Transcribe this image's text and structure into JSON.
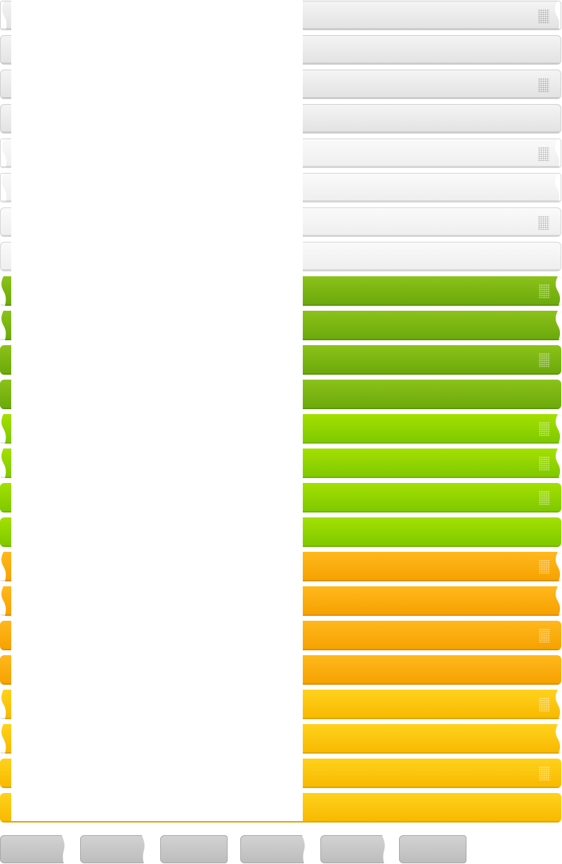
{
  "title": "",
  "colors": {
    "gray_dark": "#e2e2e2",
    "gray_light": "#eeeeee",
    "green_dark": "#6aa80b",
    "green_light": "#7dc800",
    "orange_dark": "#f6a100",
    "orange_light": "#f8b800",
    "tab_gray": "#bdbdbd"
  },
  "bars": [
    {
      "name": "bar-gray-dark-wavy-grip",
      "style": "gray1",
      "grip": true
    },
    {
      "name": "bar-gray-dark-plain",
      "style": "gray1",
      "grip": false
    },
    {
      "name": "bar-gray-dark-rounded-grip",
      "style": "gray1",
      "grip": true
    },
    {
      "name": "bar-gray-dark-rounded-plain",
      "style": "gray1",
      "grip": false
    },
    {
      "name": "bar-gray-light-wavy-grip",
      "style": "gray2",
      "grip": true
    },
    {
      "name": "bar-gray-light-wavy-plain",
      "style": "gray2",
      "grip": false
    },
    {
      "name": "bar-gray-light-rounded-grip",
      "style": "gray2",
      "grip": true
    },
    {
      "name": "bar-gray-light-rounded-plain",
      "style": "gray2",
      "grip": false
    },
    {
      "name": "bar-green-dark-wavy-grip",
      "style": "green1",
      "grip": true
    },
    {
      "name": "bar-green-dark-wavy-plain",
      "style": "green1",
      "grip": false
    },
    {
      "name": "bar-green-dark-rounded-grip",
      "style": "green1",
      "grip": true
    },
    {
      "name": "bar-green-dark-rounded-plain",
      "style": "green1",
      "grip": false
    },
    {
      "name": "bar-green-light-wavy-grip",
      "style": "green2",
      "grip": true
    },
    {
      "name": "bar-green-light-wavy-grip-2",
      "style": "green2",
      "grip": true
    },
    {
      "name": "bar-green-light-rounded-grip",
      "style": "green2",
      "grip": true
    },
    {
      "name": "bar-green-light-rounded-plain",
      "style": "green2",
      "grip": false
    },
    {
      "name": "bar-orange-dark-wavy-grip",
      "style": "orange1",
      "grip": true
    },
    {
      "name": "bar-orange-dark-wavy-plain",
      "style": "orange1",
      "grip": false
    },
    {
      "name": "bar-orange-dark-rounded-grip",
      "style": "orange1",
      "grip": true
    },
    {
      "name": "bar-orange-dark-rounded-plain",
      "style": "orange1",
      "grip": false
    },
    {
      "name": "bar-orange-light-wavy-grip",
      "style": "orange2",
      "grip": true
    },
    {
      "name": "bar-orange-light-wavy-plain",
      "style": "orange2",
      "grip": false
    },
    {
      "name": "bar-orange-light-rounded-grip",
      "style": "orange2",
      "grip": true
    },
    {
      "name": "bar-orange-light-rounded-plain",
      "style": "orange2",
      "grip": false
    }
  ],
  "tabs": [
    {
      "name": "tab-1"
    },
    {
      "name": "tab-2"
    },
    {
      "name": "tab-3"
    },
    {
      "name": "tab-4"
    },
    {
      "name": "tab-5"
    },
    {
      "name": "tab-6"
    }
  ]
}
